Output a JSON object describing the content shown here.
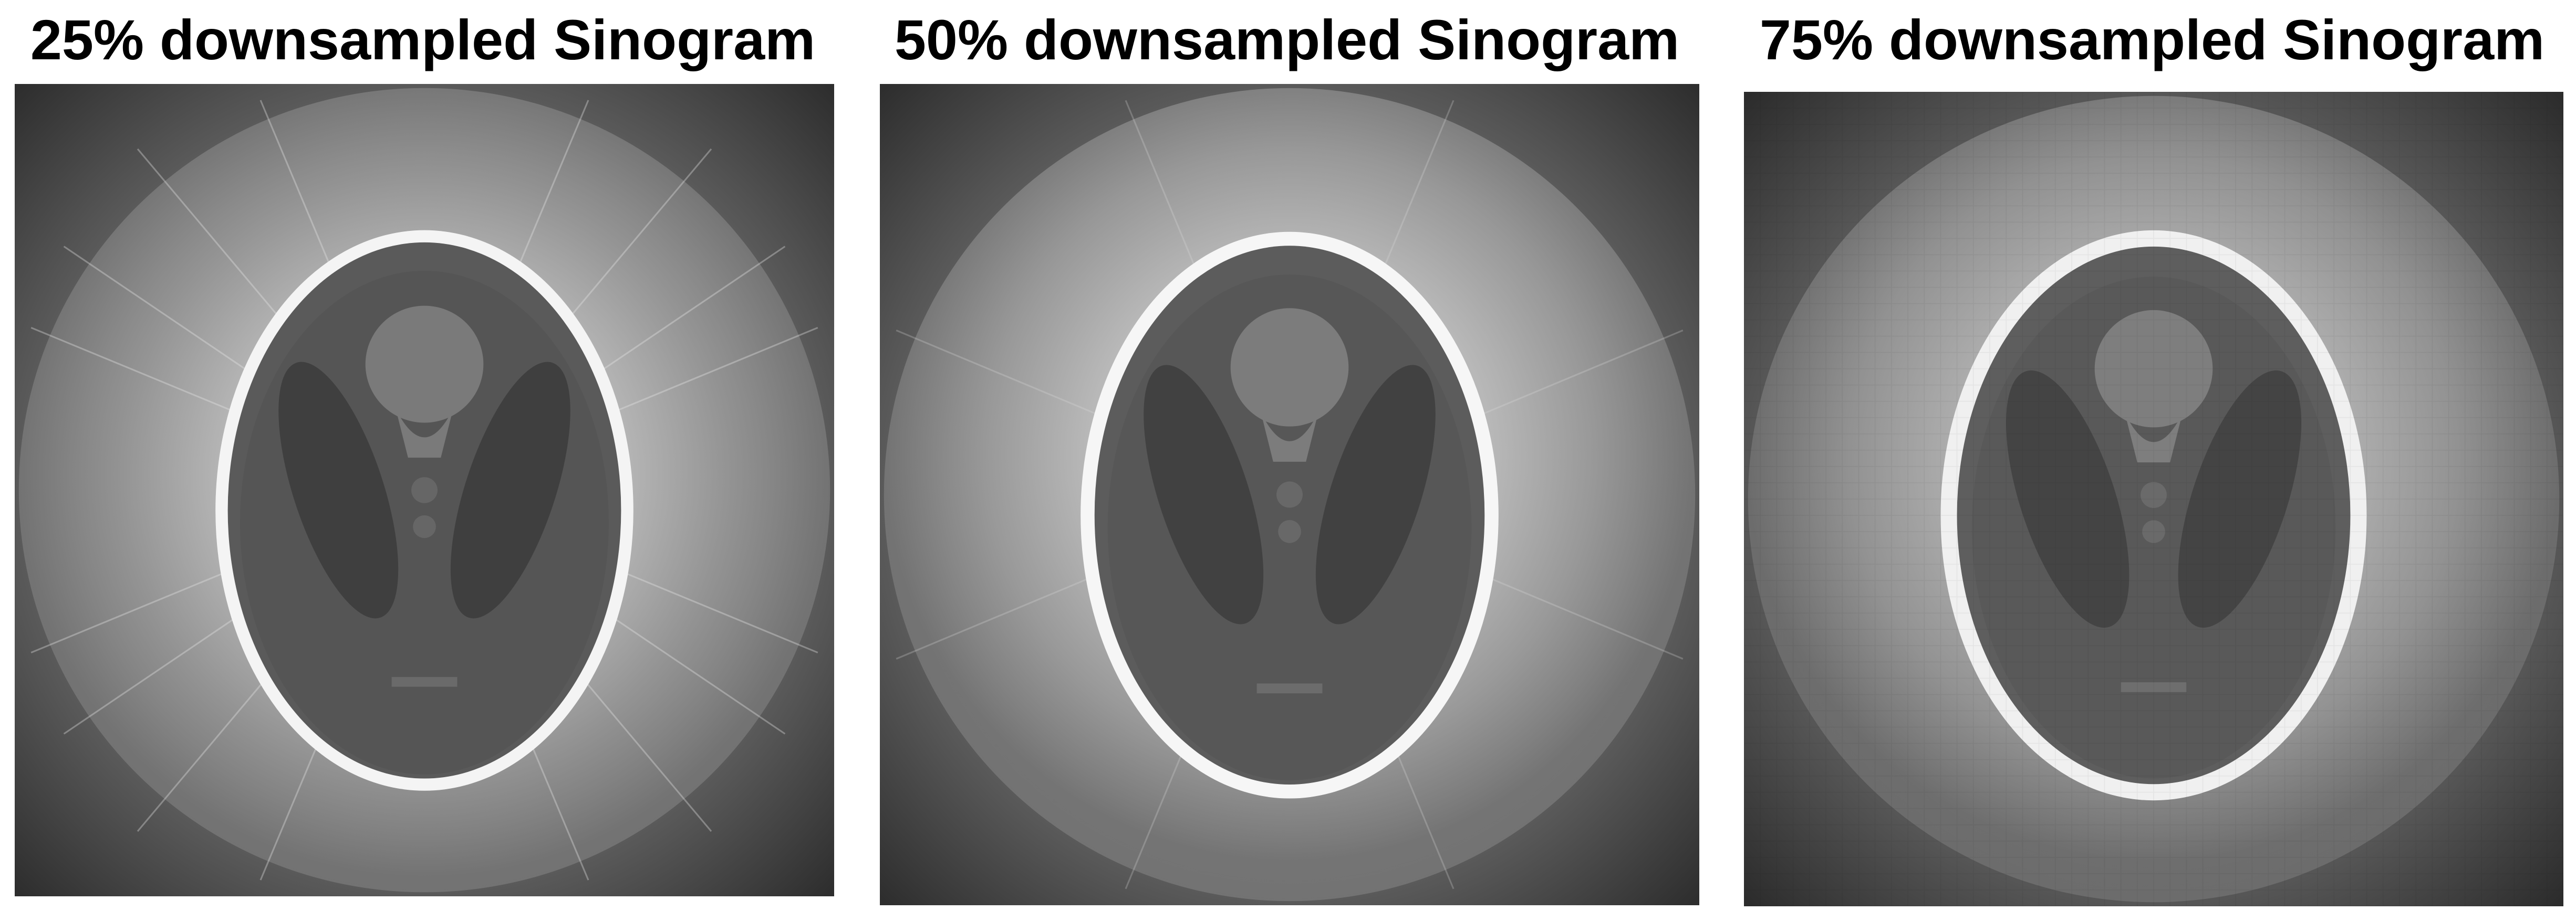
{
  "panels": [
    {
      "title": "25% downsampled Sinogram"
    },
    {
      "title": "50% downsampled Sinogram"
    },
    {
      "title": "75% downsampled Sinogram"
    }
  ]
}
